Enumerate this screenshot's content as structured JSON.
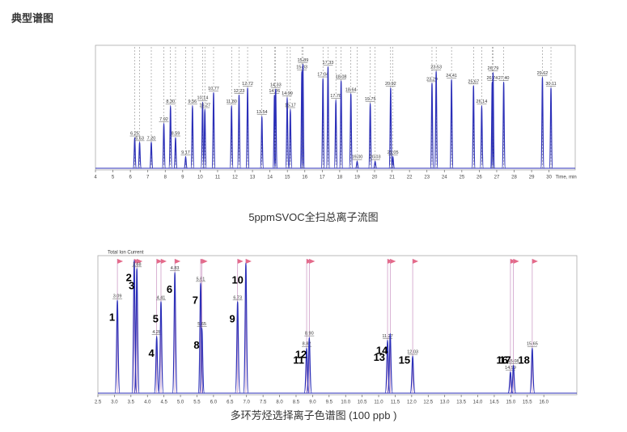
{
  "header": {
    "title": "典型谱图"
  },
  "chart_data": [
    {
      "type": "chromatogram",
      "caption": "5ppmSVOC全扫总离子流图",
      "x_label": "Time, min",
      "xlim": [
        4,
        31.5
      ],
      "ylim": [
        0,
        100
      ],
      "color": "#2b2fb8",
      "xticks": [
        4,
        5,
        6,
        7,
        8,
        9,
        10,
        11,
        12,
        13,
        14,
        15,
        16,
        17,
        18,
        19,
        20,
        21,
        22,
        23,
        24,
        25,
        26,
        27,
        28,
        29,
        30
      ],
      "x": [
        6.25,
        6.53,
        7.2,
        7.92,
        8.3,
        8.59,
        9.17,
        9.56,
        10.14,
        10.27,
        10.77,
        11.8,
        12.23,
        12.72,
        13.54,
        14.26,
        14.33,
        14.99,
        15.17,
        15.83,
        15.89,
        17.04,
        17.33,
        17.78,
        18.08,
        18.64,
        19.0,
        19.75,
        20.03,
        20.92,
        21.05,
        23.29,
        23.53,
        24.41,
        25.67,
        26.14,
        26.74,
        26.79,
        27.4,
        29.62,
        30.11
      ],
      "x_labels": [
        "6.25",
        "6.53",
        "7.20",
        "7.92",
        "8.30",
        "8.59",
        "9.17",
        "9.56",
        "10.14",
        "10.27",
        "10.77",
        "11.80",
        "12.23",
        "12.72",
        "13.54",
        "14.26",
        "14.33",
        "14.99",
        "15.17",
        "15.83",
        "15.89",
        "17.04",
        "17.33",
        "17.78",
        "18.08",
        "18.64",
        "19.00",
        "19.75",
        "20.03",
        "20.92",
        "21.05",
        "23.29",
        "23.53",
        "24.41",
        "25.67",
        "26.14",
        "26.74",
        "26.79",
        "27.40",
        "29.62",
        "30.11"
      ],
      "values": [
        26,
        22,
        22,
        38,
        53,
        26,
        10,
        53,
        56,
        50,
        64,
        53,
        62,
        68,
        44,
        62,
        67,
        60,
        50,
        82,
        88,
        76,
        86,
        58,
        74,
        63,
        6,
        55,
        6,
        68,
        10,
        72,
        82,
        75,
        70,
        53,
        73,
        81,
        73,
        77,
        68
      ]
    },
    {
      "type": "chromatogram",
      "title": "Total Ion Current",
      "caption": "多环芳烃选择离子色谱图 (100 ppb )",
      "xlim": [
        2.5,
        17.0
      ],
      "ylim": [
        0,
        100
      ],
      "color": "#2b2fb8",
      "flag_color": "#e46a8a",
      "xticks": [
        {
          "value": 2.5,
          "label": "2.5"
        },
        {
          "value": 3,
          "label": "3.0"
        },
        {
          "value": 3.5,
          "label": "3.5"
        },
        {
          "value": 4,
          "label": "4.0"
        },
        {
          "value": 4.5,
          "label": "4.5"
        },
        {
          "value": 5,
          "label": "5.0"
        },
        {
          "value": 5.5,
          "label": "5.5"
        },
        {
          "value": 6,
          "label": "6.0"
        },
        {
          "value": 6.5,
          "label": "6.5"
        },
        {
          "value": 7,
          "label": "7.0"
        },
        {
          "value": 7.5,
          "label": "7.5"
        },
        {
          "value": 8,
          "label": "8.0"
        },
        {
          "value": 8.5,
          "label": "8.5"
        },
        {
          "value": 9,
          "label": "9.0"
        },
        {
          "value": 9.5,
          "label": "9.5"
        },
        {
          "value": 10,
          "label": "10.0"
        },
        {
          "value": 10.5,
          "label": "10.5"
        },
        {
          "value": 11,
          "label": "11.0"
        },
        {
          "value": 11.5,
          "label": "11.5"
        },
        {
          "value": 12,
          "label": "12.0"
        },
        {
          "value": 12.5,
          "label": "12.5"
        },
        {
          "value": 13,
          "label": "13.0"
        },
        {
          "value": 13.5,
          "label": "13.5"
        },
        {
          "value": 14,
          "label": "14.0"
        },
        {
          "value": 14.5,
          "label": "14.5"
        },
        {
          "value": 15,
          "label": "15.0"
        },
        {
          "value": 15.5,
          "label": "15.5"
        },
        {
          "value": 16,
          "label": "16.0"
        }
      ],
      "peak_numbers": [
        "1",
        "2",
        "3",
        "4",
        "5",
        "6",
        "7",
        "8",
        "9",
        "10",
        "11",
        "12",
        "13",
        "14",
        "15",
        "16",
        "17",
        "18"
      ],
      "x": [
        3.09,
        3.6,
        3.68,
        4.28,
        4.41,
        4.83,
        5.61,
        5.65,
        6.73,
        6.98,
        8.82,
        8.9,
        11.27,
        11.35,
        12.03,
        14.99,
        15.08,
        15.65
      ],
      "x_labels": [
        "3.09",
        null,
        "3.68",
        "4.28",
        "4.41",
        "4.83",
        "5.61",
        "5.65",
        "6.73",
        null,
        "8.82",
        "8.90",
        "11.27",
        null,
        "12.03",
        "14.99",
        "15.08",
        "15.65"
      ],
      "values": [
        70,
        100,
        94,
        43,
        69,
        91,
        83,
        49,
        69,
        98,
        34,
        42,
        40,
        45,
        28,
        16,
        21,
        34
      ]
    }
  ]
}
